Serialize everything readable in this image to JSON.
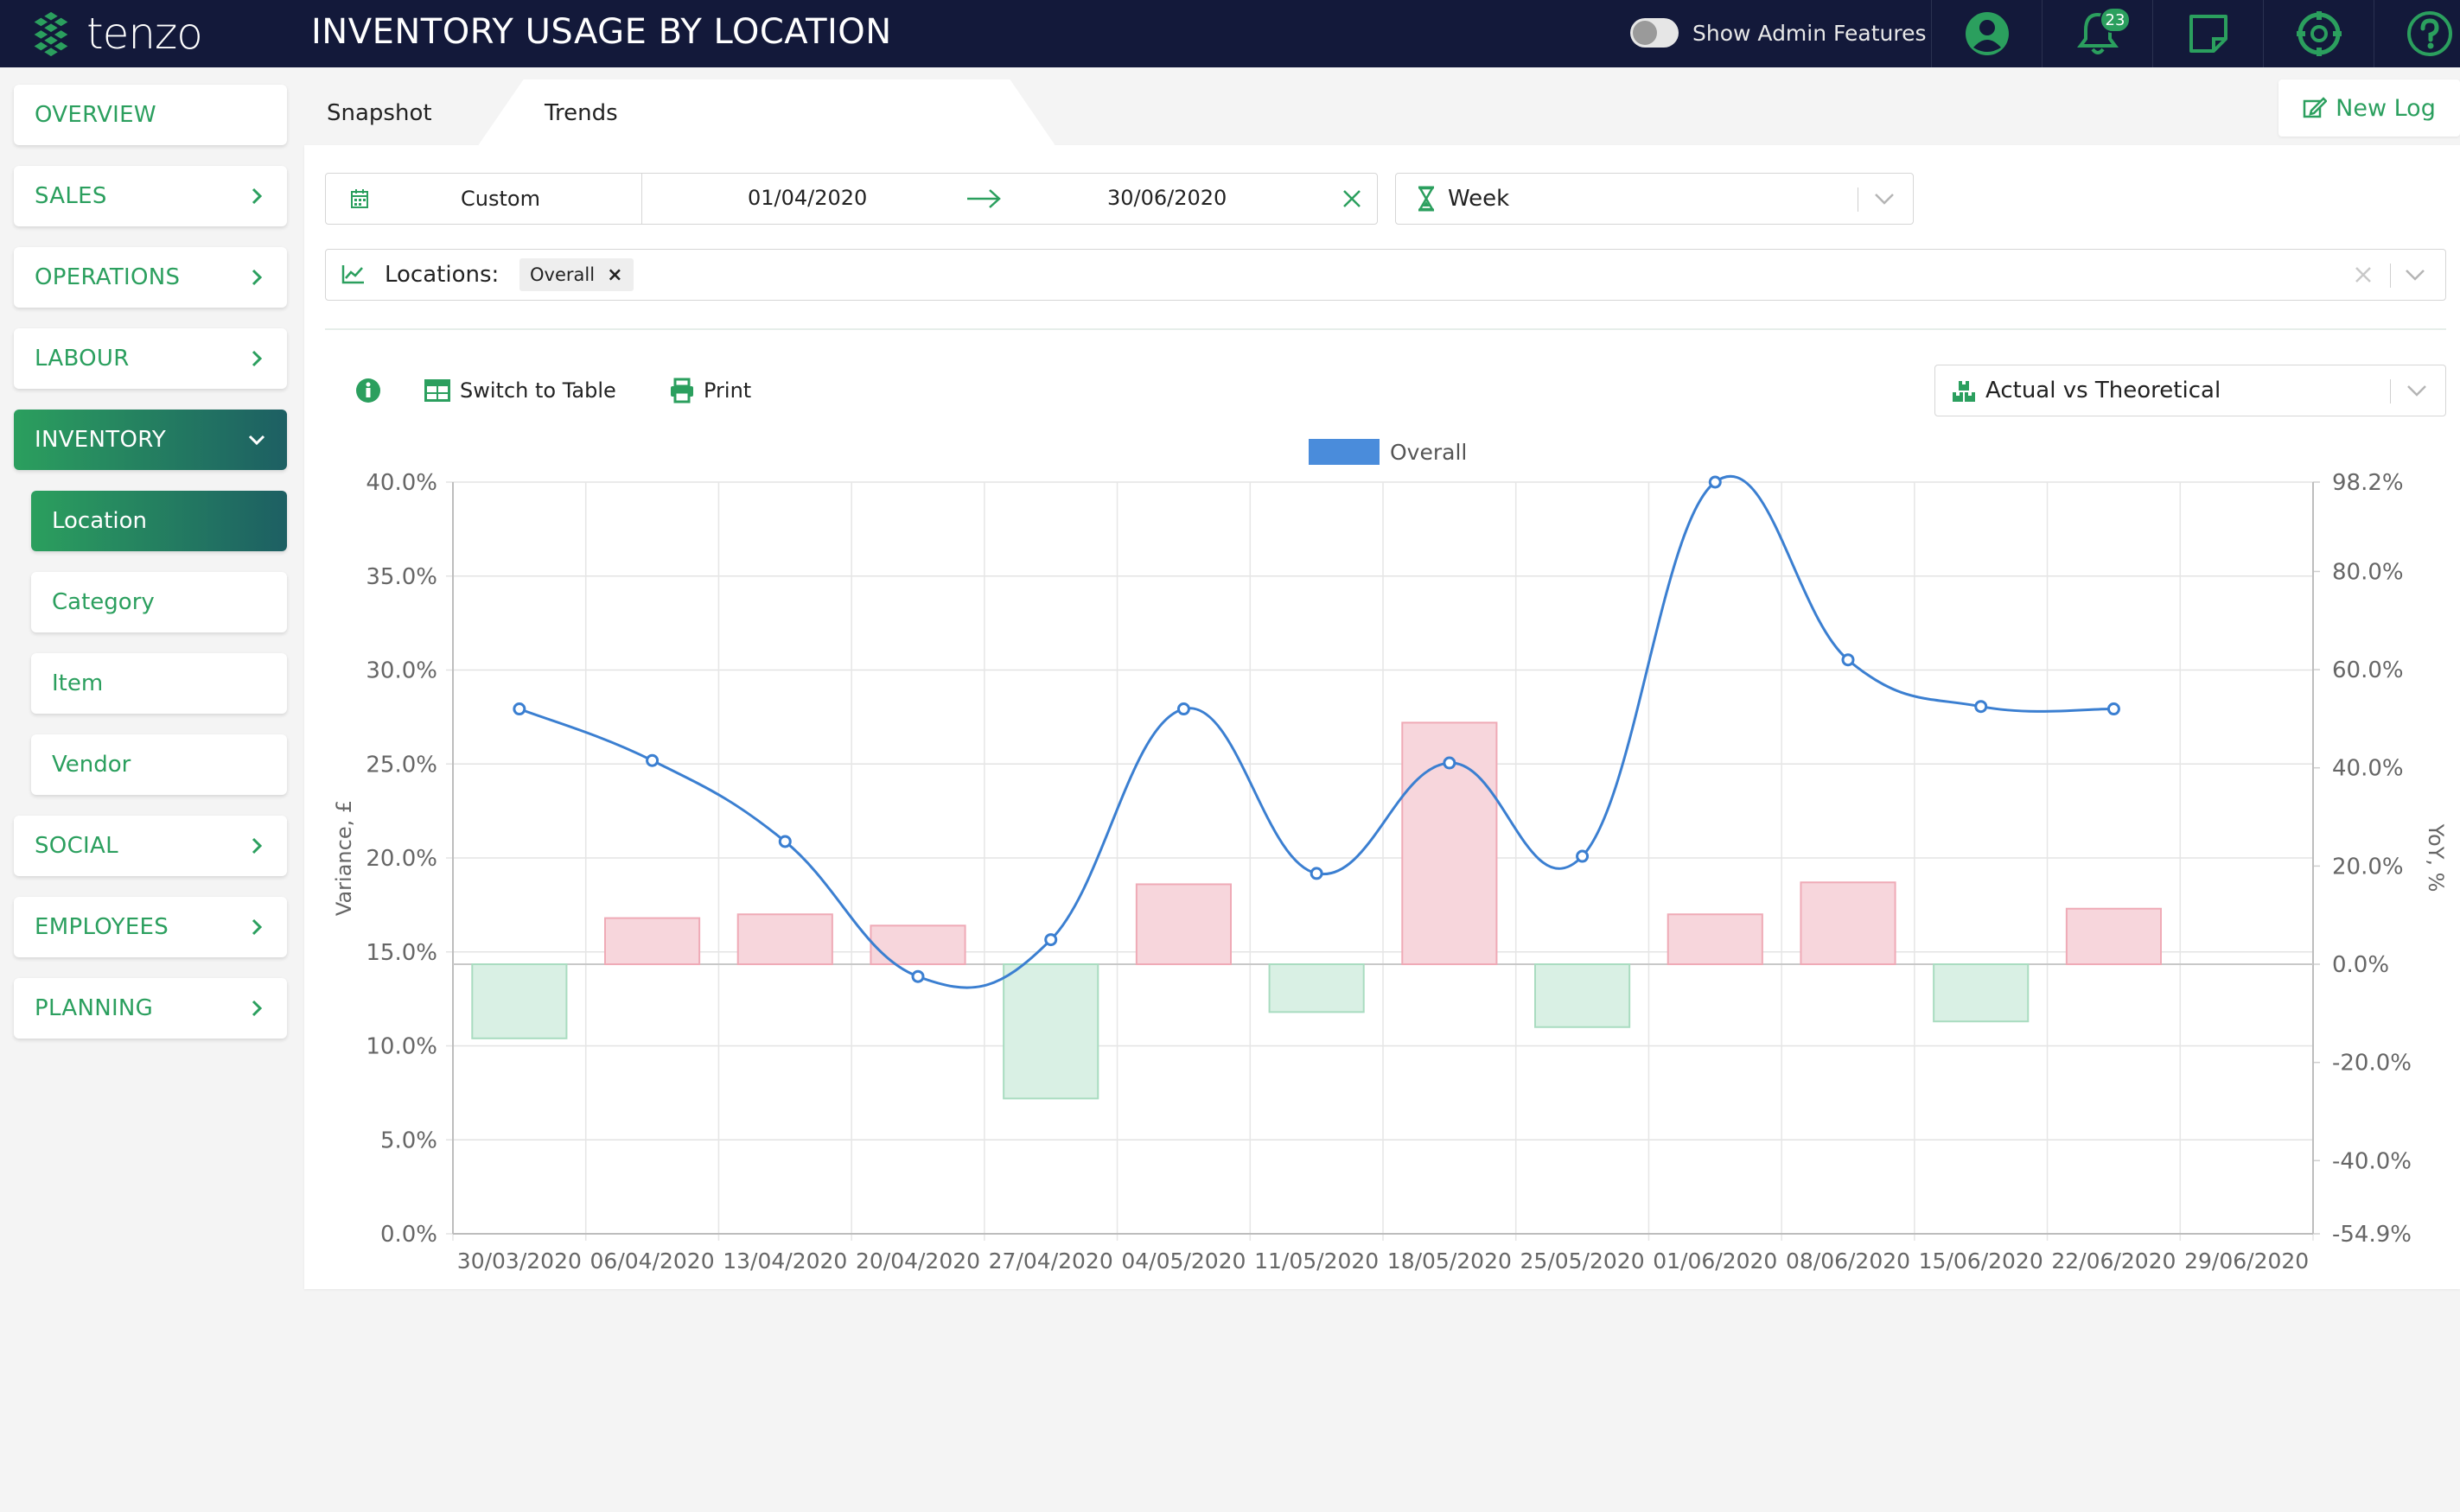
{
  "app": {
    "logo_text": "tenzo",
    "page_title": "INVENTORY USAGE BY LOCATION",
    "admin_toggle_label": "Show Admin Features",
    "notifications_count": "23"
  },
  "sidebar": {
    "items": [
      {
        "label": "OVERVIEW"
      },
      {
        "label": "SALES"
      },
      {
        "label": "OPERATIONS"
      },
      {
        "label": "LABOUR"
      },
      {
        "label": "INVENTORY"
      },
      {
        "label": "Location"
      },
      {
        "label": "Category"
      },
      {
        "label": "Item"
      },
      {
        "label": "Vendor"
      },
      {
        "label": "SOCIAL"
      },
      {
        "label": "EMPLOYEES"
      },
      {
        "label": "PLANNING"
      }
    ]
  },
  "tabs": [
    {
      "label": "Snapshot"
    },
    {
      "label": "Trends"
    }
  ],
  "new_log_label": "New Log",
  "filters": {
    "range_type": "Custom",
    "date_from": "01/04/2020",
    "date_to": "30/06/2020",
    "granularity": "Week",
    "locations_label": "Locations:",
    "location_chip": "Overall"
  },
  "toolbar": {
    "switch_table_label": "Switch to Table",
    "print_label": "Print",
    "comparison": "Actual vs Theoretical"
  },
  "colors": {
    "brand_green": "#2b9f5e",
    "topbar": "#13193a",
    "line": "#3b7fd1",
    "positive_bar": "#f7d6dc",
    "negative_bar": "#d9f0e4"
  },
  "chart_data": {
    "type": "bar",
    "legend": "Overall",
    "categories": [
      "30/03/2020",
      "06/04/2020",
      "13/04/2020",
      "20/04/2020",
      "27/04/2020",
      "04/05/2020",
      "11/05/2020",
      "18/05/2020",
      "25/05/2020",
      "01/06/2020",
      "08/06/2020",
      "15/06/2020",
      "22/06/2020",
      "29/06/2020"
    ],
    "ylabel_left": "Variance, £",
    "ylabel_right": "YoY, %",
    "left_ticks": [
      "0.0%",
      "5.0%",
      "10.0%",
      "15.0%",
      "20.0%",
      "25.0%",
      "30.0%",
      "35.0%",
      "40.0%"
    ],
    "right_ticks": [
      "-54.9%",
      "-40.0%",
      "-20.0%",
      "0.0%",
      "20.0%",
      "40.0%",
      "60.0%",
      "80.0%",
      "98.2%"
    ],
    "ylim_left": [
      0,
      40
    ],
    "ylim_right": [
      -54.9,
      98.2
    ],
    "grid": true,
    "series": [
      {
        "name": "Overall",
        "kind": "bar",
        "axis": "left",
        "values": [
          10.4,
          16.8,
          17.0,
          16.4,
          7.2,
          18.6,
          11.8,
          27.2,
          11.0,
          17.0,
          18.7,
          11.3,
          17.3,
          null
        ]
      },
      {
        "name": "Overall",
        "kind": "line",
        "axis": "right",
        "values": [
          52,
          41.5,
          25,
          -2.5,
          5,
          52,
          18.5,
          41,
          22,
          98.2,
          62,
          52.5,
          52,
          null
        ]
      }
    ]
  }
}
